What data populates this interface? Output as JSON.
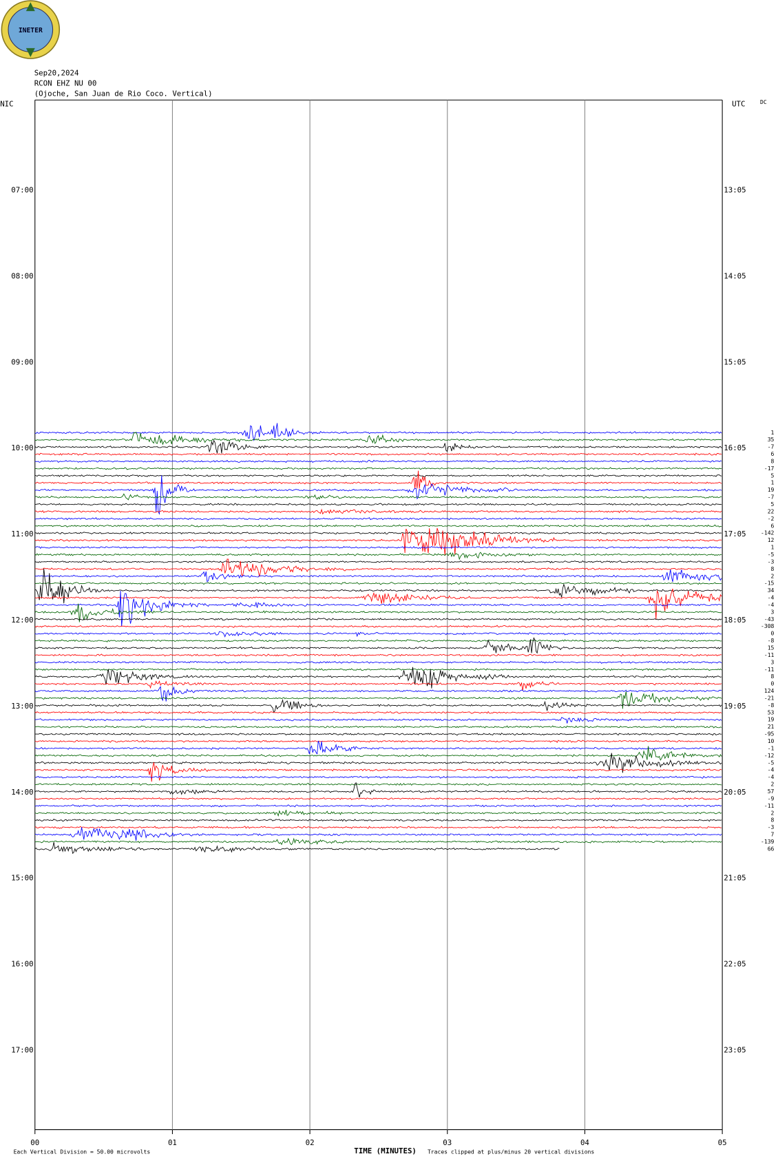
{
  "chart_data": {
    "type": "helicorder",
    "logo_text": "INETER",
    "title_lines": [
      "Sep20,2024",
      "RCON EHZ NU 00",
      "(Ojoche, San Juan de Rio Coco. Vertical)"
    ],
    "left_axis_title": "NIC",
    "right_axis_title": "UTC",
    "dc_title": "DC",
    "left_times": [
      "07:00",
      "08:00",
      "09:00",
      "10:00",
      "11:00",
      "12:00",
      "13:00",
      "14:00",
      "15:00",
      "16:00",
      "17:00"
    ],
    "right_times": [
      "13:05",
      "14:05",
      "15:05",
      "16:05",
      "17:05",
      "18:05",
      "19:05",
      "20:05",
      "21:05",
      "22:05",
      "23:05"
    ],
    "xlim": [
      0,
      5
    ],
    "xticks": [
      {
        "value": 0,
        "label": "00"
      },
      {
        "value": 1,
        "label": "01"
      },
      {
        "value": 2,
        "label": "02"
      },
      {
        "value": 3,
        "label": "03"
      },
      {
        "value": 4,
        "label": "04"
      },
      {
        "value": 5,
        "label": "05"
      }
    ],
    "x_label": "TIME (MINUTES)",
    "scale_note": "Each Vertical Division =   50.00 microvolts",
    "clip_note": "Traces clipped at plus/minus 20 vertical divisions",
    "trace_colors": [
      "#0000ff",
      "#006400",
      "#000000",
      "#ff0000"
    ],
    "dc_offsets": [
      1,
      35,
      -7,
      6,
      8,
      -17,
      5,
      1,
      19,
      -7,
      5,
      22,
      -2,
      6,
      -142,
      12,
      1,
      -5,
      -3,
      8,
      2,
      -15,
      34,
      -4,
      -4,
      3,
      -43,
      -308,
      0,
      -8,
      15,
      -11,
      3,
      -11,
      8,
      0,
      124,
      -21,
      -8,
      53,
      19,
      21,
      -95,
      10,
      -1,
      -12,
      -5,
      -4,
      -4,
      2,
      57,
      -9,
      -11,
      2,
      8,
      -3,
      7,
      -139,
      66
    ]
  }
}
